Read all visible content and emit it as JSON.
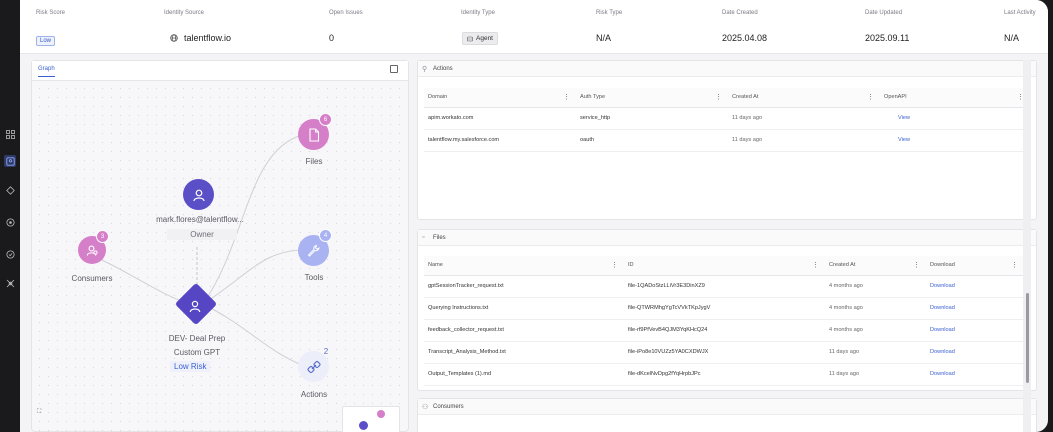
{
  "summary": {
    "risk_score": {
      "label": "Risk Score",
      "value": "Low"
    },
    "identity_source": {
      "label": "Identity Source",
      "value": "talentflow.io"
    },
    "open_issues": {
      "label": "Open Issues",
      "value": "0"
    },
    "identity_type": {
      "label": "Identity Type",
      "value": "Agent"
    },
    "risk_type": {
      "label": "Risk Type",
      "value": "N/A"
    },
    "date_created": {
      "label": "Date Created",
      "value": "2025.04.08"
    },
    "date_updated": {
      "label": "Date Updated",
      "value": "2025.09.11"
    },
    "last_activity": {
      "label": "Last Activity",
      "value": "N/A"
    }
  },
  "graph": {
    "tab": "Graph",
    "owner": {
      "name": "mark.flores@talentflow...",
      "role": "Owner"
    },
    "consumers": {
      "label": "Consumers",
      "count": "3"
    },
    "agent": {
      "name": "DEV- Deal Prep",
      "type": "Custom GPT",
      "risk": "Low Risk"
    },
    "files": {
      "label": "Files",
      "count": "6"
    },
    "tools": {
      "label": "Tools",
      "count": "4"
    },
    "actions": {
      "label": "Actions",
      "count": "2"
    }
  },
  "actions_panel": {
    "title": "Actions",
    "columns": [
      "Domain",
      "Auth Type",
      "Created At",
      "OpenAPI"
    ],
    "rows": [
      {
        "domain": "apim.workato.com",
        "auth": "service_http",
        "created": "11 days ago",
        "openapi": "View"
      },
      {
        "domain": "talentflow.my.salesforce.com",
        "auth": "oauth",
        "created": "11 days ago",
        "openapi": "View"
      }
    ]
  },
  "files_panel": {
    "title": "Files",
    "columns": [
      "Name",
      "ID",
      "Created At",
      "Download"
    ],
    "rows": [
      {
        "name": "gptSessionTracker_request.txt",
        "id": "file-1QADoStzLLiVr3E3DinXZ9",
        "created": "4 months ago",
        "download": "Download"
      },
      {
        "name": "Querying Instructions.txt",
        "id": "file-QTWRMhgYgTcVVkTKpJygV",
        "created": "4 months ago",
        "download": "Download"
      },
      {
        "name": "feedback_collector_request.txt",
        "id": "file-rf9PfVevB4QJM3YqKHcQ24",
        "created": "4 months ago",
        "download": "Download"
      },
      {
        "name": "Transcript_Analysis_Method.txt",
        "id": "file-iPo8e10VUZz5YA0CXDWJX",
        "created": "11 days ago",
        "download": "Download"
      },
      {
        "name": "Output_Templates (1).md",
        "id": "file-dKcelNvDpg2fYqHrpbJPc",
        "created": "11 days ago",
        "download": "Download"
      }
    ]
  },
  "consumers_panel": {
    "title": "Consumers"
  },
  "colors": {
    "accent": "#3b5fd1",
    "pink": "#d973c8",
    "violet": "#5b4fc7",
    "lilac": "#a9b3f2"
  }
}
